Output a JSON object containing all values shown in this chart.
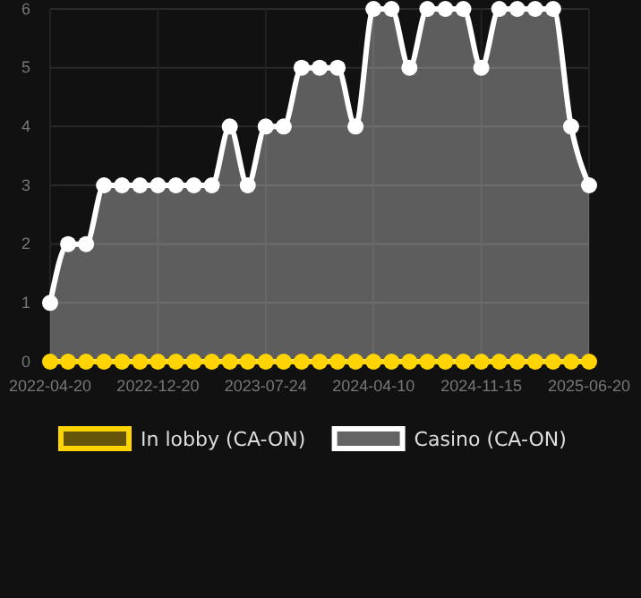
{
  "chart_data": {
    "type": "area",
    "categories": [
      "2022-04-20",
      null,
      null,
      null,
      null,
      null,
      "2022-12-20",
      null,
      null,
      null,
      null,
      null,
      "2023-07-24",
      null,
      null,
      null,
      null,
      null,
      "2024-04-10",
      null,
      null,
      null,
      null,
      null,
      "2024-11-15",
      null,
      null,
      null,
      null,
      null,
      "2025-06-20"
    ],
    "series": [
      {
        "name": "In lobby (CA-ON)",
        "type": "line",
        "color": "#ffd400",
        "values": [
          0,
          0,
          0,
          0,
          0,
          0,
          0,
          0,
          0,
          0,
          0,
          0,
          0,
          0,
          0,
          0,
          0,
          0,
          0,
          0,
          0,
          0,
          0,
          0,
          0,
          0,
          0,
          0,
          0,
          0,
          0
        ]
      },
      {
        "name": "Casino (CA-ON)",
        "color": "#ffffff",
        "values": [
          1,
          2,
          2,
          3,
          3,
          3,
          3,
          3,
          3,
          3,
          4,
          3,
          4,
          4,
          5,
          5,
          5,
          4,
          6,
          6,
          5,
          6,
          6,
          6,
          5,
          6,
          6,
          6,
          6,
          4,
          3
        ]
      }
    ],
    "ylim": [
      0,
      6
    ],
    "yticks": [
      0,
      1,
      2,
      3,
      4,
      5,
      6
    ],
    "grid": true,
    "legend": "bottom",
    "marker": "circle",
    "line_style": "solid"
  }
}
